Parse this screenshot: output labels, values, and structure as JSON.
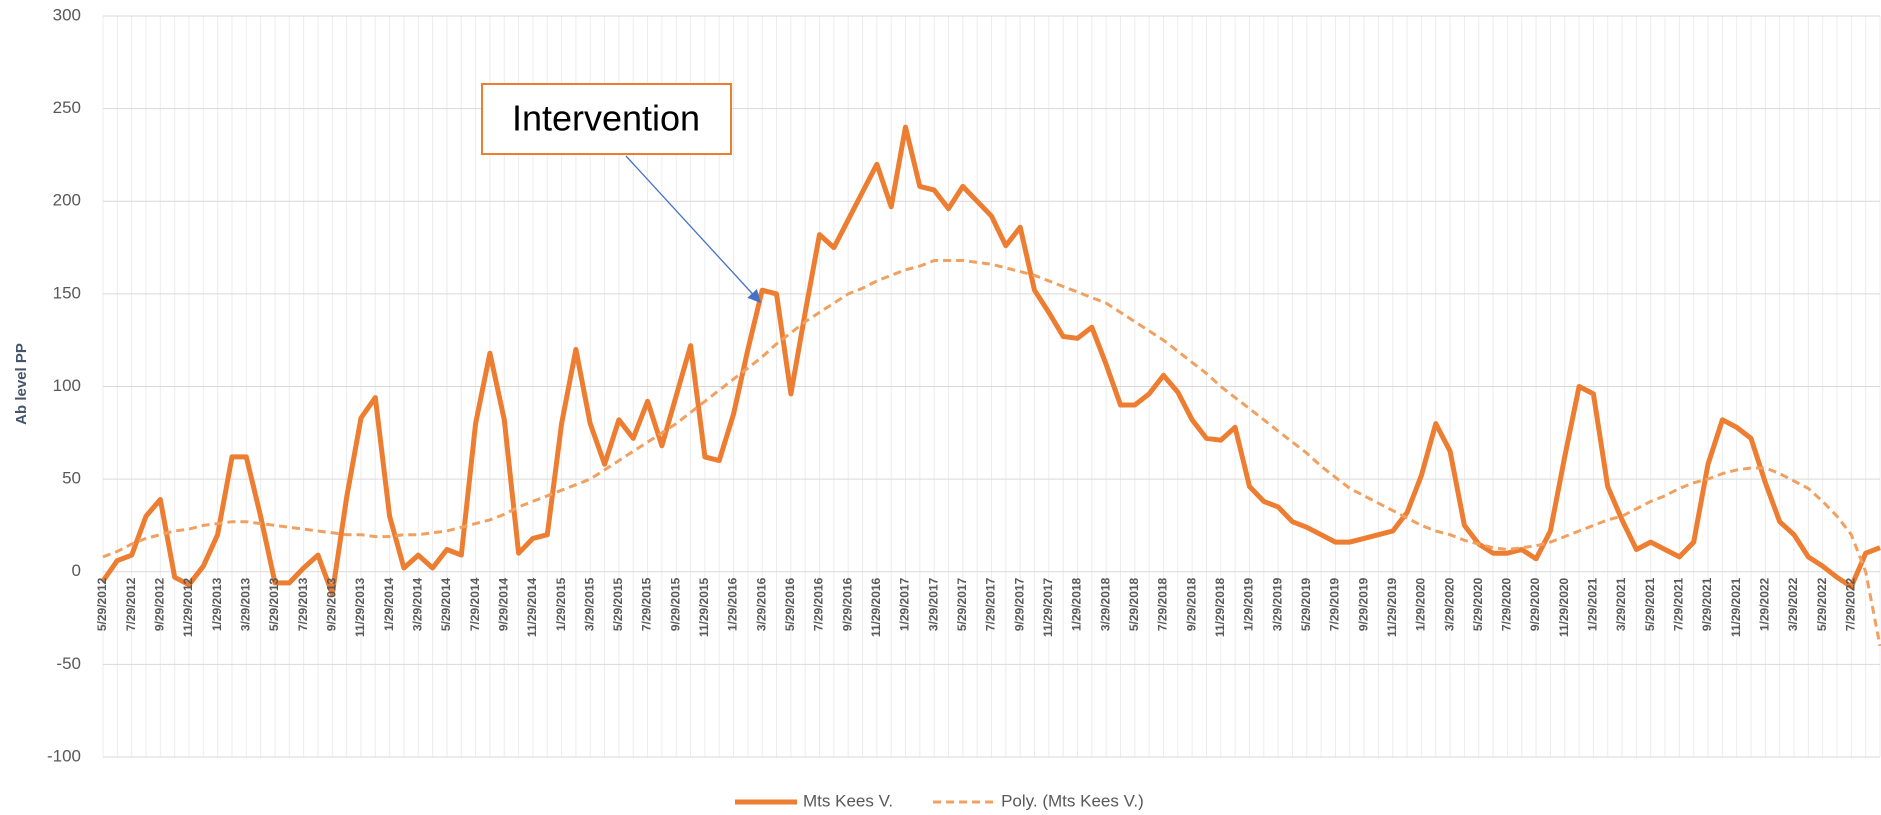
{
  "chart_data": {
    "type": "line",
    "ylabel": "Ab level PP",
    "annotation": "Intervention",
    "ylim": [
      -100,
      300
    ],
    "yticks": [
      -100,
      -50,
      0,
      50,
      100,
      150,
      200,
      250,
      300
    ],
    "grid": true,
    "legend": "bottom",
    "categories": [
      "5/29/2012",
      null,
      "7/29/2012",
      null,
      "9/29/2012",
      null,
      "11/29/2012",
      null,
      "1/29/2013",
      null,
      "3/29/2013",
      null,
      "5/29/2013",
      null,
      "7/29/2013",
      null,
      "9/29/2013",
      null,
      "11/29/2013",
      null,
      "1/29/2014",
      null,
      "3/29/2014",
      null,
      "5/29/2014",
      null,
      "7/29/2014",
      null,
      "9/29/2014",
      null,
      "11/29/2014",
      null,
      "1/29/2015",
      null,
      "3/29/2015",
      null,
      "5/29/2015",
      null,
      "7/29/2015",
      null,
      "9/29/2015",
      null,
      "11/29/2015",
      null,
      "1/29/2016",
      null,
      "3/29/2016",
      null,
      "5/29/2016",
      null,
      "7/29/2016",
      null,
      "9/29/2016",
      null,
      "11/29/2016",
      null,
      "1/29/2017",
      null,
      "3/29/2017",
      null,
      "5/29/2017",
      null,
      "7/29/2017",
      null,
      "9/29/2017",
      null,
      "11/29/2017",
      null,
      "1/29/2018",
      null,
      "3/29/2018",
      null,
      "5/29/2018",
      null,
      "7/29/2018",
      null,
      "9/29/2018",
      null,
      "11/29/2018",
      null,
      "1/29/2019",
      null,
      "3/29/2019",
      null,
      "5/29/2019",
      null,
      "7/29/2019",
      null,
      "9/29/2019",
      null,
      "11/29/2019",
      null,
      "1/29/2020",
      null,
      "3/29/2020",
      null,
      "5/29/2020",
      null,
      "7/29/2020",
      null,
      "9/29/2020",
      null,
      "11/29/2020",
      null,
      "1/29/2021",
      null,
      "3/29/2021",
      null,
      "5/29/2021",
      null,
      "7/29/2021",
      null,
      "9/29/2021",
      null,
      "11/29/2021",
      null,
      "1/29/2022",
      null,
      "3/29/2022",
      null,
      "5/29/2022",
      null,
      "7/29/2022",
      null,
      null
    ],
    "series": [
      {
        "name": "Mts Kees V.",
        "color": "#ED7D31",
        "dash": false,
        "values": [
          -5,
          6,
          9,
          30,
          39,
          -3,
          -7,
          3,
          20,
          62,
          62,
          30,
          -6,
          -6,
          2,
          9,
          -12,
          40,
          83,
          94,
          30,
          2,
          9,
          2,
          12,
          9,
          80,
          118,
          82,
          10,
          18,
          20,
          80,
          120,
          80,
          58,
          82,
          72,
          92,
          68,
          95,
          122,
          62,
          60,
          85,
          120,
          152,
          150,
          96,
          140,
          182,
          175,
          190,
          205,
          220,
          197,
          240,
          208,
          206,
          196,
          208,
          200,
          192,
          176,
          186,
          152,
          140,
          127,
          126,
          132,
          112,
          90,
          90,
          96,
          106,
          97,
          82,
          72,
          71,
          78,
          46,
          38,
          35,
          27,
          24,
          20,
          16,
          16,
          18,
          20,
          22,
          32,
          52,
          80,
          65,
          25,
          15,
          10,
          10,
          12,
          7,
          22,
          62,
          100,
          96,
          46,
          28,
          12,
          16,
          12,
          8,
          16,
          58,
          82,
          78,
          72,
          48,
          27,
          20,
          8,
          3,
          -3,
          -8,
          10,
          13
        ]
      },
      {
        "name": "Poly. (Mts Kees V.)",
        "color": "#F0A060",
        "dash": true,
        "values": [
          8,
          11,
          15,
          18,
          20,
          22,
          23,
          25,
          26,
          27,
          27,
          26,
          25,
          24,
          23,
          22,
          21,
          20,
          20,
          19,
          19,
          20,
          20,
          21,
          22,
          24,
          26,
          28,
          31,
          35,
          38,
          41,
          44,
          47,
          50,
          55,
          60,
          65,
          70,
          75,
          80,
          86,
          92,
          98,
          104,
          110,
          116,
          123,
          129,
          135,
          140,
          145,
          150,
          153,
          157,
          160,
          163,
          165,
          168,
          168,
          168,
          167,
          166,
          164,
          162,
          160,
          157,
          154,
          151,
          148,
          145,
          140,
          135,
          130,
          125,
          119,
          113,
          107,
          100,
          94,
          88,
          82,
          76,
          70,
          64,
          57,
          51,
          45,
          41,
          37,
          33,
          29,
          25,
          22,
          20,
          17,
          15,
          13,
          12,
          13,
          14,
          16,
          19,
          22,
          25,
          28,
          30,
          34,
          38,
          41,
          45,
          48,
          50,
          53,
          55,
          56,
          56,
          53,
          49,
          45,
          38,
          30,
          20,
          0,
          -40
        ]
      }
    ]
  }
}
